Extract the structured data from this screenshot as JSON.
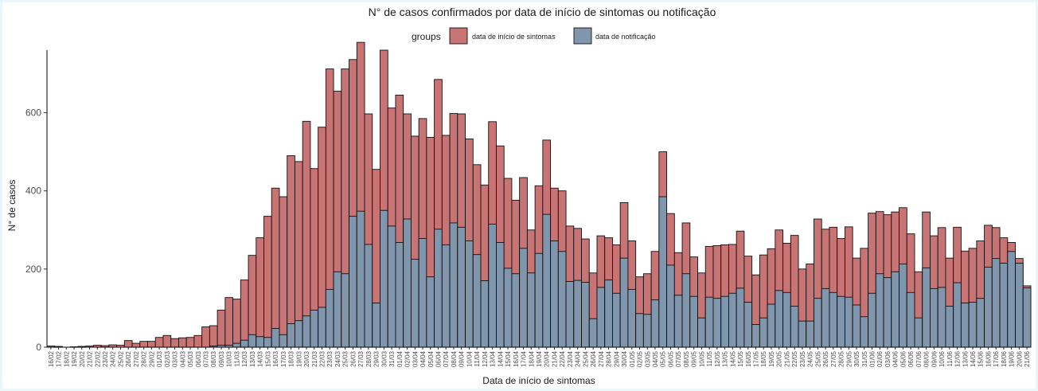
{
  "chart_data": {
    "type": "bar",
    "title": "N° de casos confirmados por data de início de sintomas ou notificação",
    "xlabel": "Data de início de sintomas",
    "ylabel": "N° de casos",
    "legend": {
      "title": "groups",
      "placement": "top",
      "entries": [
        {
          "label": "data de início de sintomas",
          "color": "#c87474"
        },
        {
          "label": "data de notificação",
          "color": "#8096ad"
        }
      ]
    },
    "ylim": [
      0,
      760
    ],
    "yticks": [
      0,
      200,
      400,
      600
    ],
    "grid": false,
    "categories": [
      "16/02",
      "17/02",
      "18/02",
      "19/02",
      "20/02",
      "21/02",
      "22/02",
      "23/02",
      "24/02",
      "25/02",
      "26/02",
      "27/02",
      "28/02",
      "29/02",
      "01/03",
      "02/03",
      "03/03",
      "04/03",
      "05/03",
      "06/03",
      "07/03",
      "08/03",
      "09/03",
      "10/03",
      "11/03",
      "12/03",
      "13/03",
      "14/03",
      "15/03",
      "16/03",
      "17/03",
      "18/03",
      "19/03",
      "20/03",
      "21/03",
      "22/03",
      "23/03",
      "24/03",
      "25/03",
      "26/03",
      "27/03",
      "28/03",
      "29/03",
      "30/03",
      "31/03",
      "01/04",
      "02/04",
      "03/04",
      "04/04",
      "05/04",
      "06/04",
      "07/04",
      "08/04",
      "09/04",
      "10/04",
      "11/04",
      "12/04",
      "13/04",
      "14/04",
      "15/04",
      "16/04",
      "17/04",
      "18/04",
      "19/04",
      "20/04",
      "21/04",
      "22/04",
      "23/04",
      "24/04",
      "25/04",
      "26/04",
      "27/04",
      "28/04",
      "29/04",
      "30/04",
      "01/05",
      "02/05",
      "03/05",
      "04/05",
      "05/05",
      "06/05",
      "07/05",
      "08/05",
      "09/05",
      "10/05",
      "11/05",
      "12/05",
      "13/05",
      "14/05",
      "15/05",
      "16/05",
      "17/05",
      "18/05",
      "19/05",
      "20/05",
      "21/05",
      "22/05",
      "23/05",
      "24/05",
      "25/05",
      "26/05",
      "27/05",
      "28/05",
      "29/05",
      "30/05",
      "31/05",
      "01/06",
      "02/06",
      "03/06",
      "04/06",
      "05/06",
      "06/06",
      "07/06",
      "08/06",
      "09/06",
      "10/06",
      "11/06",
      "12/06",
      "13/06",
      "14/06",
      "15/06",
      "16/06",
      "17/06",
      "18/06",
      "19/06",
      "20/06",
      "21/06"
    ],
    "xtick_labels_shown": [
      "16/02",
      "17/02",
      "18/02",
      "19/02",
      "20/02",
      "21/02",
      "22/02",
      "23/02",
      "24/02",
      "25/02",
      "26/02",
      "27/02",
      "28/02",
      "29/02",
      "01/03",
      "02/03",
      "03/03",
      "04/03",
      "05/03",
      "06/03",
      "07/03",
      "08/03",
      "09/03",
      "10/03",
      "11/03",
      "12/03",
      "13/03",
      "14/03",
      "15/03",
      "16/03",
      "17/03",
      "18/03",
      "19/03",
      "20/03",
      "21/03",
      "22/03",
      "23/03",
      "24/03",
      "25/03",
      "26/03",
      "27/03",
      "28/03",
      "29/03",
      "30/03",
      "31/03",
      "01/04",
      "02/04",
      "03/04",
      "04/04",
      "05/04",
      "06/04",
      "07/04",
      "08/04",
      "09/04",
      "10/04",
      "11/04",
      "12/04",
      "13/04",
      "14/04",
      "15/04",
      "16/04",
      "17/04",
      "18/04",
      "19/04",
      "20/04",
      "21/04",
      "22/04",
      "23/04",
      "24/04",
      "25/04",
      "26/04",
      "27/04",
      "28/04",
      "29/04",
      "30/04",
      "01/05",
      "02/05",
      "03/05",
      "04/05",
      "05/05",
      "06/05",
      "07/05",
      "08/05",
      "09/05",
      "10/05",
      "11/05",
      "12/05",
      "13/05",
      "14/05",
      "15/05",
      "16/05",
      "17/05",
      "18/05",
      "19/05",
      "20/05",
      "21/05",
      "22/05",
      "23/05",
      "24/05",
      "25/05",
      "26/05",
      "27/05",
      "28/05",
      "29/05",
      "30/05",
      "31/05",
      "01/06",
      "02/06",
      "03/06",
      "04/06",
      "05/06",
      "06/06",
      "07/06",
      "08/06",
      "09/06",
      "10/06",
      "11/06",
      "12/06",
      "13/06",
      "14/06",
      "15/06",
      "16/06",
      "17/06",
      "18/06",
      "19/06",
      "20/06",
      "21/06"
    ],
    "series": [
      {
        "name": "data de início de sintomas",
        "color": "#c87474",
        "values": [
          3,
          2,
          0,
          1,
          2,
          3,
          5,
          4,
          6,
          5,
          17,
          10,
          15,
          15,
          25,
          30,
          22,
          24,
          25,
          30,
          52,
          55,
          95,
          127,
          123,
          172,
          235,
          280,
          335,
          407,
          385,
          490,
          475,
          578,
          457,
          563,
          712,
          655,
          712,
          736,
          780,
          597,
          455,
          760,
          612,
          645,
          597,
          540,
          585,
          537,
          685,
          542,
          598,
          597,
          533,
          467,
          415,
          577,
          515,
          432,
          376,
          434,
          300,
          413,
          530,
          407,
          400,
          310,
          304,
          277,
          190,
          285,
          280,
          262,
          370,
          272,
          180,
          188,
          245,
          500,
          342,
          242,
          318,
          231,
          190,
          258,
          260,
          262,
          263,
          297,
          233,
          185,
          236,
          252,
          300,
          266,
          286,
          200,
          213,
          328,
          302,
          307,
          278,
          308,
          228,
          253,
          343,
          347,
          339,
          346,
          357,
          290,
          193,
          346,
          285,
          306,
          228,
          307,
          246,
          253,
          272,
          312,
          306,
          280,
          268,
          227,
          157
        ]
      },
      {
        "name": "data de notificação",
        "color": "#8096ad",
        "values": [
          0,
          0,
          0,
          0,
          0,
          0,
          0,
          0,
          0,
          0,
          0,
          0,
          0,
          0,
          0,
          0,
          0,
          0,
          0,
          0,
          0,
          3,
          5,
          5,
          10,
          18,
          32,
          27,
          25,
          48,
          32,
          60,
          68,
          80,
          95,
          102,
          148,
          193,
          188,
          335,
          348,
          263,
          113,
          350,
          310,
          268,
          328,
          225,
          278,
          180,
          302,
          262,
          318,
          307,
          272,
          237,
          170,
          315,
          268,
          202,
          188,
          253,
          190,
          240,
          340,
          272,
          245,
          168,
          171,
          166,
          73,
          153,
          172,
          138,
          228,
          148,
          86,
          84,
          121,
          385,
          210,
          133,
          188,
          130,
          75,
          128,
          125,
          130,
          138,
          151,
          115,
          58,
          75,
          110,
          145,
          140,
          105,
          67,
          67,
          125,
          150,
          140,
          130,
          128,
          108,
          78,
          138,
          188,
          178,
          193,
          213,
          140,
          75,
          203,
          150,
          153,
          105,
          165,
          113,
          115,
          125,
          205,
          227,
          215,
          245,
          215,
          152
        ]
      }
    ]
  }
}
